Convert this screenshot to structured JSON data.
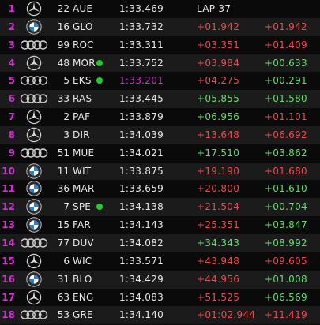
{
  "colors": {
    "position": "#d92bd9",
    "loss": "#f2474f",
    "gain": "#5fe06a",
    "pit_dot": "#1ecf2a",
    "best_lap": "#d92bd9"
  },
  "rows": [
    {
      "pos": "1",
      "team_logo": "mercedes-star-icon",
      "number": "22",
      "code": "AUE",
      "pit": false,
      "lap_time": "1:33.469",
      "best": false,
      "gap": "LAP 37",
      "gap_color": "white",
      "interval": "",
      "interval_color": "white"
    },
    {
      "pos": "2",
      "team_logo": "bmw-roundel-icon",
      "number": "16",
      "code": "GLO",
      "pit": false,
      "lap_time": "1:33.732",
      "best": false,
      "gap": "+01.942",
      "gap_color": "red",
      "interval": "+01.942",
      "interval_color": "red"
    },
    {
      "pos": "3",
      "team_logo": "audi-rings-icon",
      "number": "99",
      "code": "ROC",
      "pit": false,
      "lap_time": "1:33.311",
      "best": false,
      "gap": "+03.351",
      "gap_color": "red",
      "interval": "+01.409",
      "interval_color": "red"
    },
    {
      "pos": "4",
      "team_logo": "mercedes-star-icon",
      "number": "48",
      "code": "MOR",
      "pit": true,
      "lap_time": "1:33.752",
      "best": false,
      "gap": "+03.984",
      "gap_color": "red",
      "interval": "+00.633",
      "interval_color": "green"
    },
    {
      "pos": "5",
      "team_logo": "audi-rings-icon",
      "number": "5",
      "code": "EKS",
      "pit": true,
      "lap_time": "1:33.201",
      "best": true,
      "gap": "+04.275",
      "gap_color": "red",
      "interval": "+00.291",
      "interval_color": "green"
    },
    {
      "pos": "6",
      "team_logo": "audi-rings-icon",
      "number": "33",
      "code": "RAS",
      "pit": false,
      "lap_time": "1:33.445",
      "best": false,
      "gap": "+05.855",
      "gap_color": "green",
      "interval": "+01.580",
      "interval_color": "green"
    },
    {
      "pos": "7",
      "team_logo": "mercedes-star-icon",
      "number": "2",
      "code": "PAF",
      "pit": false,
      "lap_time": "1:33.879",
      "best": false,
      "gap": "+06.956",
      "gap_color": "green",
      "interval": "+01.101",
      "interval_color": "red"
    },
    {
      "pos": "8",
      "team_logo": "mercedes-star-icon",
      "number": "3",
      "code": "DIR",
      "pit": false,
      "lap_time": "1:34.039",
      "best": false,
      "gap": "+13.648",
      "gap_color": "red",
      "interval": "+06.692",
      "interval_color": "red"
    },
    {
      "pos": "9",
      "team_logo": "audi-rings-icon",
      "number": "51",
      "code": "MUE",
      "pit": false,
      "lap_time": "1:34.021",
      "best": false,
      "gap": "+17.510",
      "gap_color": "green",
      "interval": "+03.862",
      "interval_color": "green"
    },
    {
      "pos": "10",
      "team_logo": "bmw-roundel-icon",
      "number": "11",
      "code": "WIT",
      "pit": false,
      "lap_time": "1:33.875",
      "best": false,
      "gap": "+19.190",
      "gap_color": "red",
      "interval": "+01.680",
      "interval_color": "red"
    },
    {
      "pos": "11",
      "team_logo": "bmw-roundel-icon",
      "number": "36",
      "code": "MAR",
      "pit": false,
      "lap_time": "1:33.659",
      "best": false,
      "gap": "+20.800",
      "gap_color": "red",
      "interval": "+01.610",
      "interval_color": "green"
    },
    {
      "pos": "12",
      "team_logo": "bmw-roundel-icon",
      "number": "7",
      "code": "SPE",
      "pit": true,
      "lap_time": "1:34.138",
      "best": false,
      "gap": "+21.504",
      "gap_color": "red",
      "interval": "+00.704",
      "interval_color": "green"
    },
    {
      "pos": "13",
      "team_logo": "bmw-roundel-icon",
      "number": "15",
      "code": "FAR",
      "pit": false,
      "lap_time": "1:34.143",
      "best": false,
      "gap": "+25.351",
      "gap_color": "red",
      "interval": "+03.847",
      "interval_color": "green"
    },
    {
      "pos": "14",
      "team_logo": "audi-rings-icon",
      "number": "77",
      "code": "DUV",
      "pit": false,
      "lap_time": "1:34.082",
      "best": false,
      "gap": "+34.343",
      "gap_color": "green",
      "interval": "+08.992",
      "interval_color": "green"
    },
    {
      "pos": "15",
      "team_logo": "mercedes-star-icon",
      "number": "6",
      "code": "WIC",
      "pit": false,
      "lap_time": "1:33.571",
      "best": false,
      "gap": "+43.948",
      "gap_color": "red",
      "interval": "+09.605",
      "interval_color": "red"
    },
    {
      "pos": "16",
      "team_logo": "bmw-roundel-icon",
      "number": "31",
      "code": "BLO",
      "pit": false,
      "lap_time": "1:34.429",
      "best": false,
      "gap": "+44.956",
      "gap_color": "red",
      "interval": "+01.008",
      "interval_color": "green"
    },
    {
      "pos": "17",
      "team_logo": "mercedes-star-icon",
      "number": "63",
      "code": "ENG",
      "pit": false,
      "lap_time": "1:34.083",
      "best": false,
      "gap": "+51.525",
      "gap_color": "red",
      "interval": "+06.569",
      "interval_color": "green"
    },
    {
      "pos": "18",
      "team_logo": "audi-rings-icon",
      "number": "53",
      "code": "GRE",
      "pit": false,
      "lap_time": "1:34.140",
      "best": false,
      "gap": "+01:02.944",
      "gap_color": "red",
      "interval": "+11.419",
      "interval_color": "red"
    }
  ]
}
